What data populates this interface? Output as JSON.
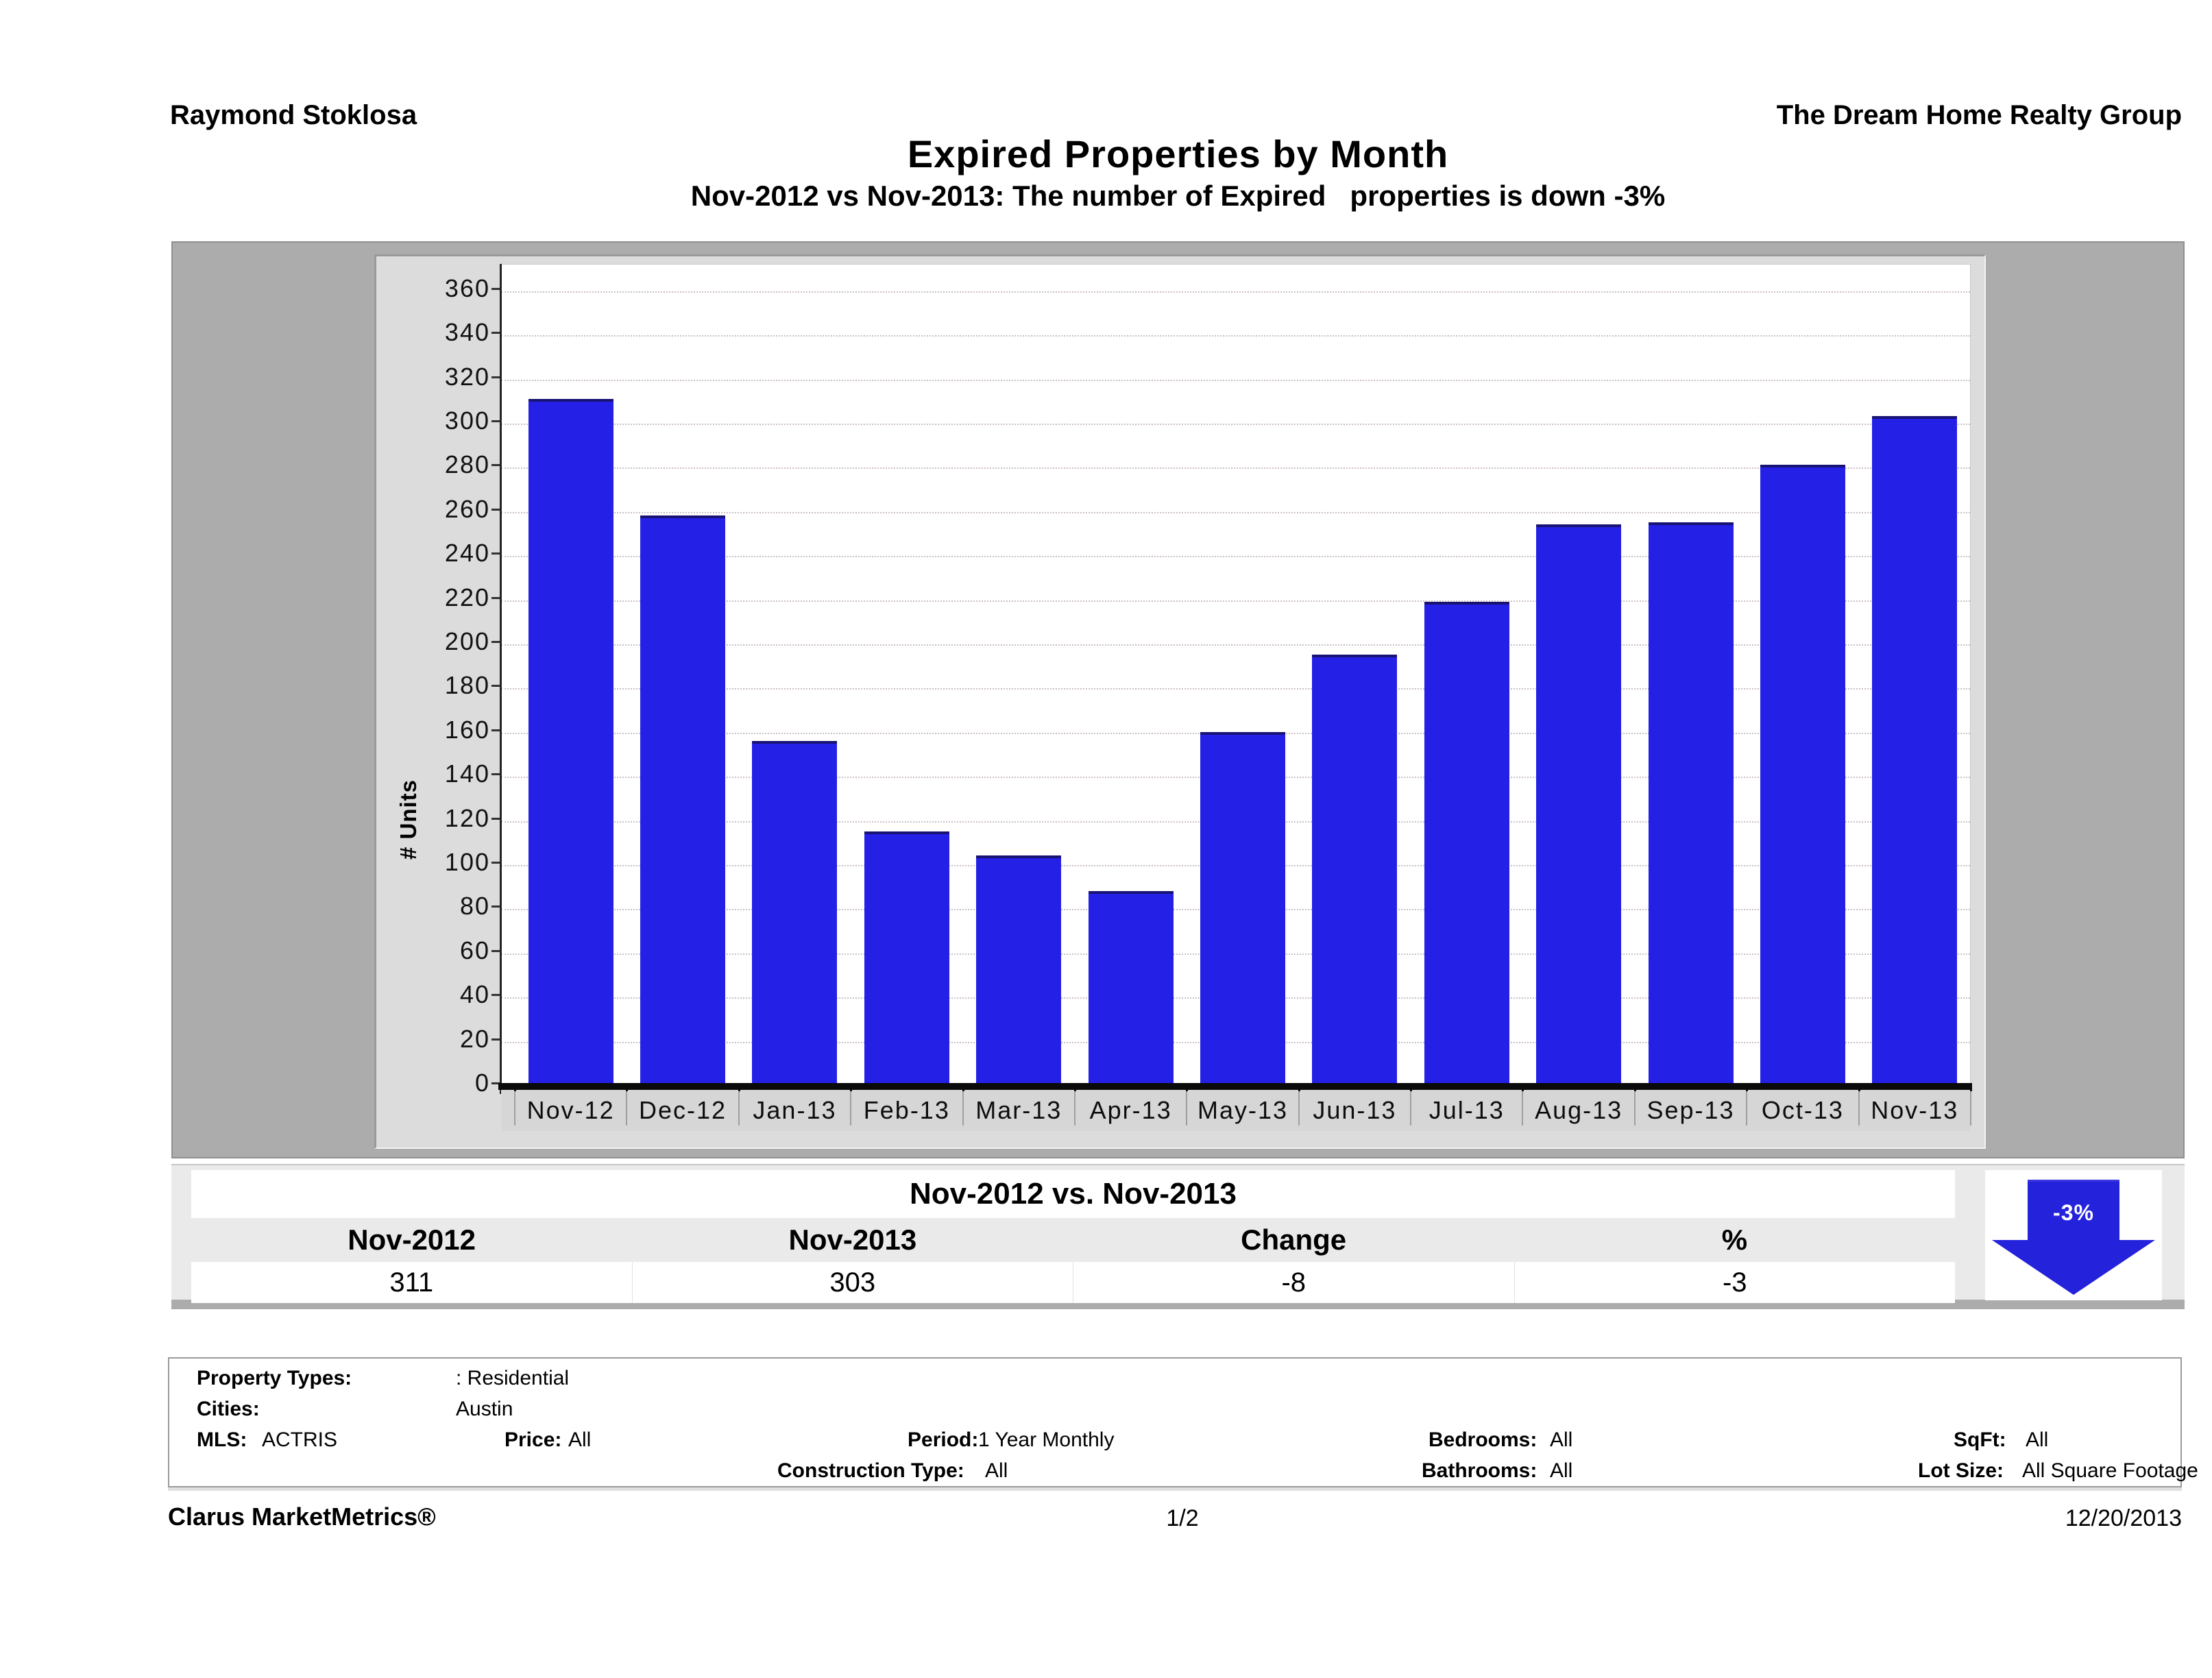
{
  "header": {
    "agent_name": "Raymond Stoklosa",
    "company_name": "The Dream Home Realty Group"
  },
  "chart_data": {
    "type": "bar",
    "title": "Expired Properties by Month",
    "subtitle": "Nov-2012 vs Nov-2013: The number of Expired   properties is down -3%",
    "categories": [
      "Nov-12",
      "Dec-12",
      "Jan-13",
      "Feb-13",
      "Mar-13",
      "Apr-13",
      "May-13",
      "Jun-13",
      "Jul-13",
      "Aug-13",
      "Sep-13",
      "Oct-13",
      "Nov-13"
    ],
    "values": [
      311,
      258,
      156,
      115,
      104,
      88,
      160,
      195,
      219,
      254,
      255,
      281,
      303
    ],
    "xlabel": "",
    "ylabel": "# Units",
    "ylim": [
      0,
      360
    ],
    "y_ticks": [
      0,
      20,
      40,
      60,
      80,
      100,
      120,
      140,
      160,
      180,
      200,
      220,
      240,
      260,
      280,
      300,
      320,
      340,
      360
    ],
    "grid": "horizontal-dotted",
    "legend_position": "none",
    "bar_color": "#2420e6"
  },
  "comparison": {
    "title": "Nov-2012 vs. Nov-2013",
    "columns": [
      "Nov-2012",
      "Nov-2013",
      "Change",
      "%"
    ],
    "values": [
      "311",
      "303",
      "-8",
      "-3"
    ],
    "arrow_label": "-3%",
    "arrow_color": "#2522dc"
  },
  "filters": {
    "property_types_label": "Property Types:",
    "property_types_value": ": Residential",
    "cities_label": "Cities:",
    "cities_value": "Austin",
    "mls_label": "MLS:",
    "mls_value": "ACTRIS",
    "price_label": "Price:",
    "price_value": "All",
    "period_label": "Period:",
    "period_value": "1 Year Monthly",
    "bedrooms_label": "Bedrooms:",
    "bedrooms_value": "All",
    "sqft_label": "SqFt:",
    "sqft_value": "All",
    "construction_label": "Construction Type:",
    "construction_value": "All",
    "bathrooms_label": "Bathrooms:",
    "bathrooms_value": "All",
    "lotsize_label": "Lot Size:",
    "lotsize_value": "All Square Footage"
  },
  "footer": {
    "brand": "Clarus MarketMetrics®",
    "page": "1/2",
    "date": "12/20/2013"
  }
}
